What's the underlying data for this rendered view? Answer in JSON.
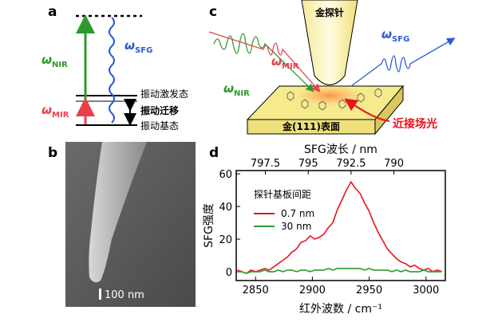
{
  "panels": {
    "a": {
      "label": "a",
      "omega_nir": {
        "symbol": "ω",
        "sub": "NIR"
      },
      "omega_sfg": {
        "symbol": "ω",
        "sub": "SFG"
      },
      "omega_mir": {
        "symbol": "ω",
        "sub": "MIR"
      },
      "excited_state": "振动激发态",
      "transition": "振动迁移",
      "ground_state": "振动基态"
    },
    "b": {
      "label": "b",
      "scale_bar": "100 nm"
    },
    "c": {
      "label": "c",
      "tip": "金探针",
      "omega_sfg": {
        "symbol": "ω",
        "sub": "SFG"
      },
      "omega_mir": {
        "symbol": "ω",
        "sub": "MIR"
      },
      "omega_nir": {
        "symbol": "ω",
        "sub": "NIR"
      },
      "surface": "金(111)表面",
      "near_field": "近接场光"
    },
    "d": {
      "label": "d"
    }
  },
  "chart_data": {
    "type": "line",
    "x_label": "红外波数 / cm⁻¹",
    "x2_label": "SFG波长 / nm",
    "y_label": "SFG强度",
    "legend_title": "探针基板间距",
    "x": [
      2834,
      2838,
      2842,
      2846,
      2850,
      2854,
      2858,
      2862,
      2866,
      2870,
      2874,
      2878,
      2882,
      2886,
      2890,
      2894,
      2898,
      2902,
      2906,
      2910,
      2914,
      2918,
      2922,
      2926,
      2930,
      2934,
      2938,
      2942,
      2946,
      2950,
      2954,
      2958,
      2962,
      2966,
      2970,
      2974,
      2978,
      2982,
      2986,
      2990,
      2994,
      2998,
      3002,
      3006,
      3010,
      3014
    ],
    "series": [
      {
        "name": "0.7 nm",
        "color": "#e8141c",
        "values": [
          1,
          0,
          -1,
          1,
          0,
          1,
          2,
          1,
          3,
          5,
          7,
          9,
          12,
          14,
          18,
          19,
          22,
          20,
          21,
          23,
          27,
          30,
          38,
          44,
          50,
          55,
          51,
          48,
          42,
          37,
          30,
          24,
          19,
          14,
          11,
          8,
          6,
          5,
          3,
          4,
          2,
          1,
          2,
          0,
          1,
          0
        ]
      },
      {
        "name": "30 nm",
        "color": "#2e9a2e",
        "values": [
          0,
          0,
          -1,
          0,
          0,
          0,
          1,
          0,
          0,
          1,
          0,
          1,
          1,
          0,
          1,
          1,
          0,
          1,
          1,
          1,
          2,
          1,
          2,
          2,
          2,
          2,
          2,
          2,
          1,
          2,
          1,
          1,
          1,
          1,
          0,
          1,
          0,
          1,
          0,
          0,
          0,
          1,
          0,
          0,
          0,
          0
        ]
      }
    ],
    "xlim": [
      2833,
      3017
    ],
    "xticks": [
      2850,
      2900,
      2950,
      3000
    ],
    "x2lim": [
      799.2,
      787.0
    ],
    "x2ticks": [
      797.5,
      795,
      792.5,
      790
    ],
    "ylim": [
      -5.4,
      62
    ],
    "yticks": [
      0,
      20,
      40,
      60
    ],
    "legend": "upper left"
  }
}
